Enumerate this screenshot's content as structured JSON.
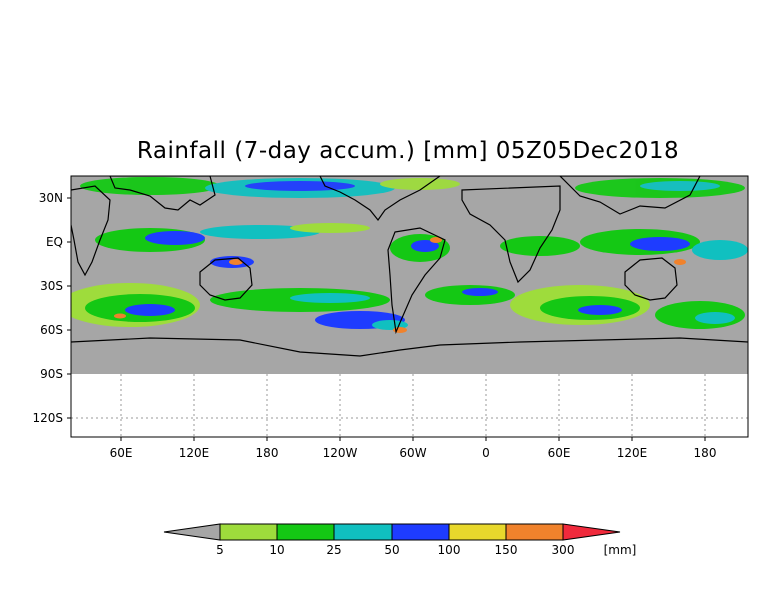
{
  "title": "Rainfall (7-day accum.) [mm] 05Z05Dec2018",
  "axes": {
    "x_ticks": [
      "60E",
      "120E",
      "180",
      "120W",
      "60W",
      "0",
      "60E",
      "120E",
      "180"
    ],
    "y_ticks": [
      "30N",
      "EQ",
      "30S",
      "60S",
      "90S",
      "120S"
    ]
  },
  "colorbar": {
    "labels": [
      "5",
      "10",
      "25",
      "50",
      "100",
      "150",
      "300"
    ],
    "unit": "[mm]",
    "colors": [
      "#a6a6a6",
      "#9edc3c",
      "#14c814",
      "#10c0c0",
      "#1e3cff",
      "#e8d82c",
      "#f0822c",
      "#f02a3c"
    ]
  },
  "colors": {
    "land_gray": "#a6a6a6",
    "light_green": "#9edc3c",
    "green": "#14c814",
    "cyan": "#10c0c0",
    "blue": "#1e3cff",
    "yellow": "#e8d82c",
    "orange": "#f0822c",
    "red": "#f02a3c"
  }
}
